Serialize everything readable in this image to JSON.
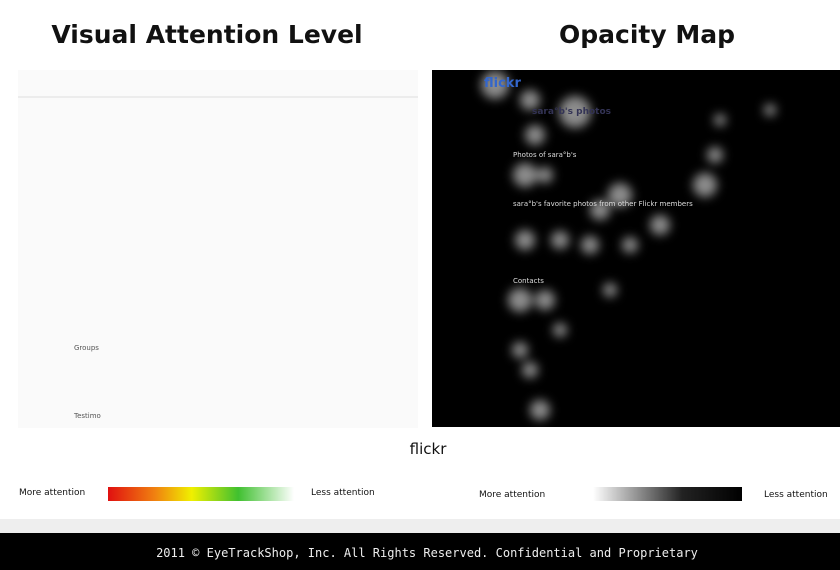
{
  "header": {
    "left_title": "Visual Attention Level",
    "right_title": "Opacity Map"
  },
  "left_panel": {
    "texts": [
      "Groups",
      "Testimo"
    ]
  },
  "right_panel": {
    "texts": [
      "flickr",
      "sara°b's photos",
      "Photos of sara°b's",
      "sara°b's favorite photos from other Flickr members",
      "Contacts"
    ]
  },
  "caption": "flickr",
  "legend_left": {
    "more": "More attention",
    "less": "Less attention"
  },
  "legend_right": {
    "more": "More attention",
    "less": "Less attention"
  },
  "footer": "2011 © EyeTrackShop, Inc. All Rights Reserved. Confidential and Proprietary"
}
